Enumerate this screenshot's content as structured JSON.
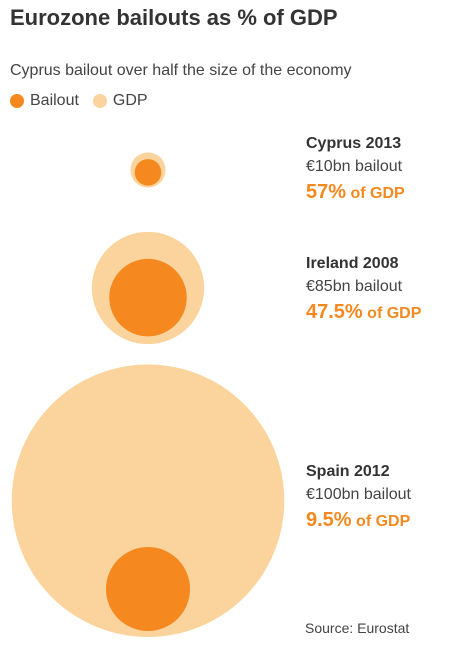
{
  "title": "Eurozone bailouts as % of GDP",
  "subtitle": "Cyprus bailout over half the size of the economy",
  "legend": {
    "bailout_label": "Bailout",
    "gdp_label": "GDP"
  },
  "colors": {
    "bailout": "#f5891f",
    "gdp": "#fad49c"
  },
  "source": "Source: Eurostat",
  "chart_data": {
    "type": "bubble",
    "title": "Eurozone bailouts as % of GDP",
    "subtitle": "Cyprus bailout over half the size of the economy",
    "series": [
      {
        "name": "Bailout",
        "color": "#f5891f"
      },
      {
        "name": "GDP",
        "color": "#fad49c"
      }
    ],
    "items": [
      {
        "country": "Cyprus 2013",
        "bailout_bn": 10,
        "bailout_text": "€10bn bailout",
        "pct_gdp": 57,
        "pct_text": "57%",
        "of_gdp_text": "of GDP"
      },
      {
        "country": "Ireland 2008",
        "bailout_bn": 85,
        "bailout_text": "€85bn bailout",
        "pct_gdp": 47.5,
        "pct_text": "47.5%",
        "of_gdp_text": "of GDP"
      },
      {
        "country": "Spain 2012",
        "bailout_bn": 100,
        "bailout_text": "€100bn bailout",
        "pct_gdp": 9.5,
        "pct_text": "9.5%",
        "of_gdp_text": "of GDP"
      }
    ],
    "legend_position": "top-left",
    "source": "Source: Eurostat"
  }
}
